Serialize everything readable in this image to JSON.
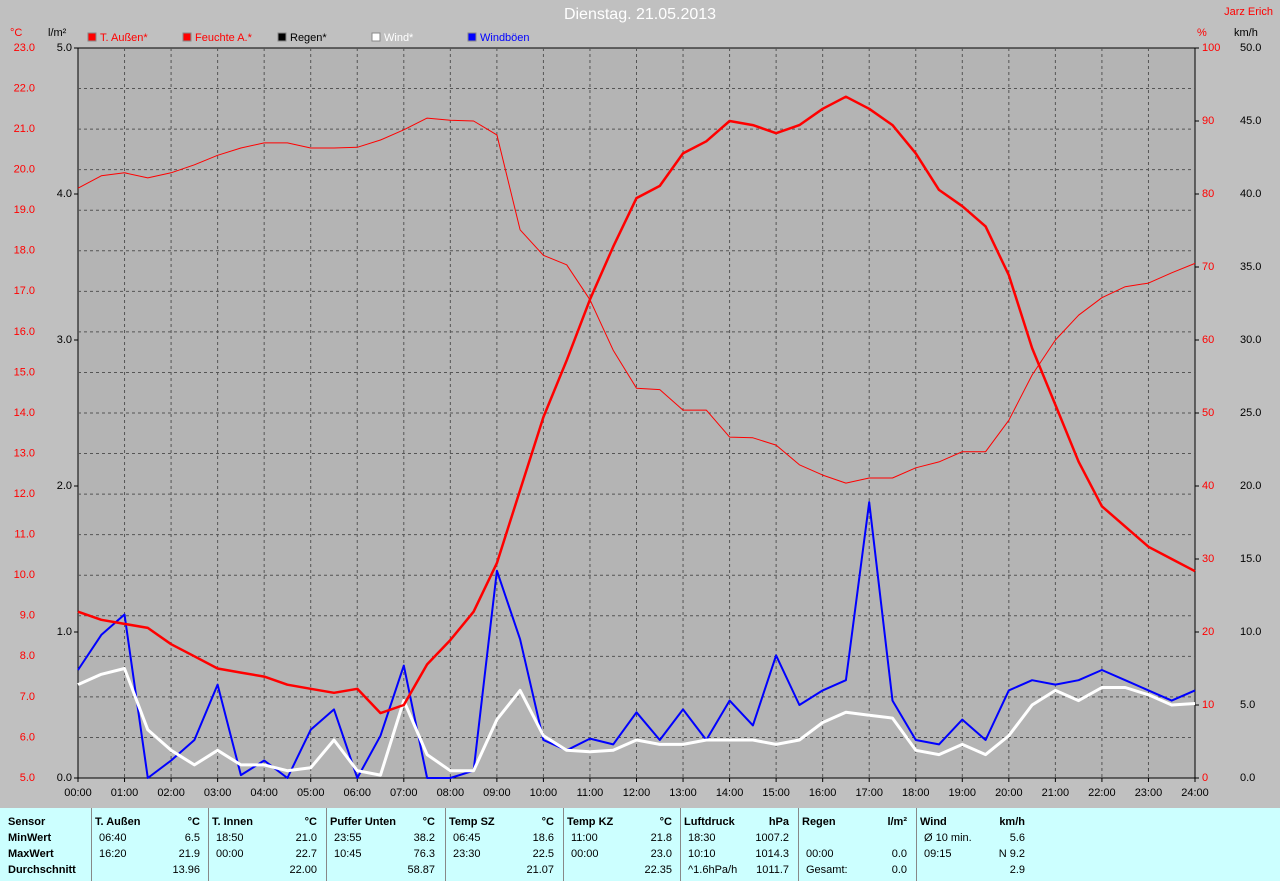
{
  "chart_data": {
    "type": "line",
    "title": "Dienstag. 21.05.2013",
    "author": "Jarz Erich",
    "ylabel": "°C",
    "y3label": "l/m²",
    "y2label": "%",
    "y4label": "km/h",
    "grid": true,
    "xlim": [
      0,
      24
    ],
    "xticks": [
      {
        "value": 0,
        "label": "00:00"
      },
      {
        "value": 1,
        "label": "01:00"
      },
      {
        "value": 2,
        "label": "02:00"
      },
      {
        "value": 3,
        "label": "03:00"
      },
      {
        "value": 4,
        "label": "04:00"
      },
      {
        "value": 5,
        "label": "05:00"
      },
      {
        "value": 6,
        "label": "06:00"
      },
      {
        "value": 7,
        "label": "07:00"
      },
      {
        "value": 8,
        "label": "08:00"
      },
      {
        "value": 9,
        "label": "09:00"
      },
      {
        "value": 10,
        "label": "10:00"
      },
      {
        "value": 11,
        "label": "11:00"
      },
      {
        "value": 12,
        "label": "12:00"
      },
      {
        "value": 13,
        "label": "13:00"
      },
      {
        "value": 14,
        "label": "14:00"
      },
      {
        "value": 15,
        "label": "15:00"
      },
      {
        "value": 16,
        "label": "16:00"
      },
      {
        "value": 17,
        "label": "17:00"
      },
      {
        "value": 18,
        "label": "18:00"
      },
      {
        "value": 19,
        "label": "19:00"
      },
      {
        "value": 20,
        "label": "20:00"
      },
      {
        "value": 21,
        "label": "21:00"
      },
      {
        "value": 22,
        "label": "22:00"
      },
      {
        "value": 23,
        "label": "23:00"
      },
      {
        "value": 24,
        "label": "24:00"
      }
    ],
    "ylim": [
      5,
      23
    ],
    "yticks": [
      {
        "value": 5,
        "label": "5.0"
      },
      {
        "value": 6,
        "label": "6.0"
      },
      {
        "value": 7,
        "label": "7.0"
      },
      {
        "value": 8,
        "label": "8.0"
      },
      {
        "value": 9,
        "label": "9.0"
      },
      {
        "value": 10,
        "label": "10.0"
      },
      {
        "value": 11,
        "label": "11.0"
      },
      {
        "value": 12,
        "label": "12.0"
      },
      {
        "value": 13,
        "label": "13.0"
      },
      {
        "value": 14,
        "label": "14.0"
      },
      {
        "value": 15,
        "label": "15.0"
      },
      {
        "value": 16,
        "label": "16.0"
      },
      {
        "value": 17,
        "label": "17.0"
      },
      {
        "value": 18,
        "label": "18.0"
      },
      {
        "value": 19,
        "label": "19.0"
      },
      {
        "value": 20,
        "label": "20.0"
      },
      {
        "value": 21,
        "label": "21.0"
      },
      {
        "value": 22,
        "label": "22.0"
      },
      {
        "value": 23,
        "label": "23.0"
      }
    ],
    "y3lim": [
      0,
      5
    ],
    "y3ticks": [
      {
        "value": 0,
        "label": "0.0"
      },
      {
        "value": 1,
        "label": "1.0"
      },
      {
        "value": 2,
        "label": "2.0"
      },
      {
        "value": 3,
        "label": "3.0"
      },
      {
        "value": 4,
        "label": "4.0"
      },
      {
        "value": 5,
        "label": "5.0"
      }
    ],
    "y2lim": [
      0,
      100
    ],
    "y2ticks": [
      0,
      10,
      20,
      30,
      40,
      50,
      60,
      70,
      80,
      90,
      100
    ],
    "y4lim": [
      0,
      50
    ],
    "y4ticks": [
      {
        "value": 0,
        "label": "0.0"
      },
      {
        "value": 5,
        "label": "5.0"
      },
      {
        "value": 10,
        "label": "10.0"
      },
      {
        "value": 15,
        "label": "15.0"
      },
      {
        "value": 20,
        "label": "20.0"
      },
      {
        "value": 25,
        "label": "25.0"
      },
      {
        "value": 30,
        "label": "30.0"
      },
      {
        "value": 35,
        "label": "35.0"
      },
      {
        "value": 40,
        "label": "40.0"
      },
      {
        "value": 45,
        "label": "45.0"
      },
      {
        "value": 50,
        "label": "50.0"
      }
    ],
    "x": [
      0,
      0.5,
      1,
      1.5,
      2,
      2.5,
      3,
      3.5,
      4,
      4.5,
      5,
      5.5,
      6,
      6.5,
      7,
      7.5,
      8,
      8.5,
      9,
      9.5,
      10,
      10.5,
      11,
      11.5,
      12,
      12.5,
      13,
      13.5,
      14,
      14.5,
      15,
      15.5,
      16,
      16.5,
      17,
      17.5,
      18,
      18.5,
      19,
      19.5,
      20,
      20.5,
      21,
      21.5,
      22,
      22.5,
      23,
      23.5,
      24
    ],
    "series": [
      {
        "name": "T. Außen*",
        "color": "#ff0000",
        "axis": "y",
        "values": [
          9.1,
          8.9,
          8.8,
          8.7,
          8.3,
          8.0,
          7.7,
          7.6,
          7.5,
          7.3,
          7.2,
          7.1,
          7.2,
          6.6,
          6.8,
          7.8,
          8.4,
          9.1,
          10.3,
          12.1,
          13.9,
          15.3,
          16.8,
          18.1,
          19.3,
          19.6,
          20.4,
          20.7,
          21.2,
          21.1,
          20.9,
          21.1,
          21.5,
          21.8,
          21.5,
          21.1,
          20.4,
          19.5,
          19.1,
          18.6,
          17.4,
          15.6,
          14.2,
          12.8,
          11.7,
          11.2,
          10.7,
          10.4,
          10.1
        ]
      },
      {
        "name": "Feuchte A.*",
        "color": "#ff0000",
        "axis": "y2",
        "values": [
          80.8,
          82.5,
          82.9,
          82.2,
          82.9,
          84.0,
          85.3,
          86.3,
          87.0,
          87.0,
          86.3,
          86.3,
          86.4,
          87.4,
          88.8,
          90.4,
          90.1,
          90.0,
          88.1,
          75.1,
          71.6,
          70.3,
          65.5,
          58.6,
          53.4,
          53.2,
          50.4,
          50.4,
          46.7,
          46.6,
          45.6,
          42.9,
          41.5,
          40.4,
          41.1,
          41.1,
          42.5,
          43.3,
          44.7,
          44.7,
          49.0,
          55.2,
          60.0,
          63.4,
          65.8,
          67.3,
          67.8,
          69.2,
          70.5
        ]
      },
      {
        "name": "Regen*",
        "color": "#000000",
        "axis": "y3",
        "values": [
          0,
          0,
          0,
          0,
          0,
          0,
          0,
          0,
          0,
          0,
          0,
          0,
          0,
          0,
          0,
          0,
          0,
          0,
          0,
          0,
          0,
          0,
          0,
          0,
          0,
          0,
          0,
          0,
          0,
          0,
          0,
          0,
          0,
          0,
          0,
          0,
          0,
          0,
          0,
          0,
          0,
          0,
          0,
          0,
          0,
          0,
          0,
          0,
          0
        ]
      },
      {
        "name": "Wind*",
        "color": "#ffffff",
        "axis": "y4",
        "values": [
          6.4,
          7.1,
          7.5,
          3.3,
          1.9,
          0.9,
          1.9,
          0.9,
          0.9,
          0.5,
          0.7,
          2.6,
          0.5,
          0.2,
          5.3,
          1.6,
          0.5,
          0.5,
          4.0,
          6.0,
          2.9,
          1.9,
          1.8,
          1.9,
          2.6,
          2.3,
          2.3,
          2.6,
          2.6,
          2.6,
          2.3,
          2.6,
          3.8,
          4.5,
          4.3,
          4.1,
          1.9,
          1.6,
          2.3,
          1.6,
          2.9,
          5.0,
          6.0,
          5.3,
          6.2,
          6.2,
          5.7,
          5.0,
          5.1
        ]
      },
      {
        "name": "Windböen",
        "color": "#0000ff",
        "axis": "y4",
        "values": [
          7.4,
          9.8,
          11.2,
          0,
          1.2,
          2.6,
          6.4,
          0.2,
          1.2,
          0,
          3.3,
          4.7,
          0,
          2.9,
          7.7,
          0,
          0,
          0.5,
          14.2,
          9.5,
          2.6,
          1.9,
          2.7,
          2.3,
          4.5,
          2.6,
          4.7,
          2.6,
          5.3,
          3.6,
          8.4,
          5.0,
          6.0,
          6.7,
          18.9,
          5.3,
          2.6,
          2.3,
          4.0,
          2.6,
          6.0,
          6.7,
          6.4,
          6.7,
          7.4,
          6.7,
          6.0,
          5.3,
          6.0
        ]
      }
    ]
  },
  "stats": {
    "row_labels": [
      "Sensor",
      "MinWert",
      "MaxWert",
      "Durchschnitt"
    ],
    "groups": [
      {
        "header": "T. Außen",
        "unit": "°C",
        "rows": [
          {
            "time": "06:40",
            "value": "6.5"
          },
          {
            "time": "16:20",
            "value": "21.9"
          },
          {
            "value": "13.96"
          }
        ]
      },
      {
        "header": "T. Innen",
        "unit": "°C",
        "rows": [
          {
            "time": "18:50",
            "value": "21.0"
          },
          {
            "time": "00:00",
            "value": "22.7"
          },
          {
            "value": "22.00"
          }
        ]
      },
      {
        "header": "Puffer Unten",
        "unit": "°C",
        "rows": [
          {
            "time": "23:55",
            "value": "38.2"
          },
          {
            "time": "10:45",
            "value": "76.3"
          },
          {
            "value": "58.87"
          }
        ]
      },
      {
        "header": "Temp SZ",
        "unit": "°C",
        "rows": [
          {
            "time": "06:45",
            "value": "18.6"
          },
          {
            "time": "23:30",
            "value": "22.5"
          },
          {
            "value": "21.07"
          }
        ]
      },
      {
        "header": "Temp KZ",
        "unit": "°C",
        "rows": [
          {
            "time": "11:00",
            "value": "21.8"
          },
          {
            "time": "00:00",
            "value": "23.0"
          },
          {
            "value": "22.35"
          }
        ]
      },
      {
        "header": "Luftdruck",
        "unit": "hPa",
        "rows": [
          {
            "time": "18:30",
            "value": "1007.2"
          },
          {
            "time": "10:10",
            "value": "1014.3"
          },
          {
            "time": "^1.6hPa/h",
            "value": "1011.7"
          }
        ]
      },
      {
        "header": "Regen",
        "unit": "l/m²",
        "rows": [
          {},
          {
            "time": "00:00",
            "value": "0.0"
          },
          {
            "time": "Gesamt:",
            "value": "0.0"
          }
        ]
      },
      {
        "header": "Wind",
        "unit": "km/h",
        "rows": [
          {
            "time": "Ø 10 min.",
            "value": "5.6"
          },
          {
            "time": "09:15",
            "value": "N 9.2"
          },
          {
            "value": "2.9"
          }
        ]
      }
    ]
  }
}
